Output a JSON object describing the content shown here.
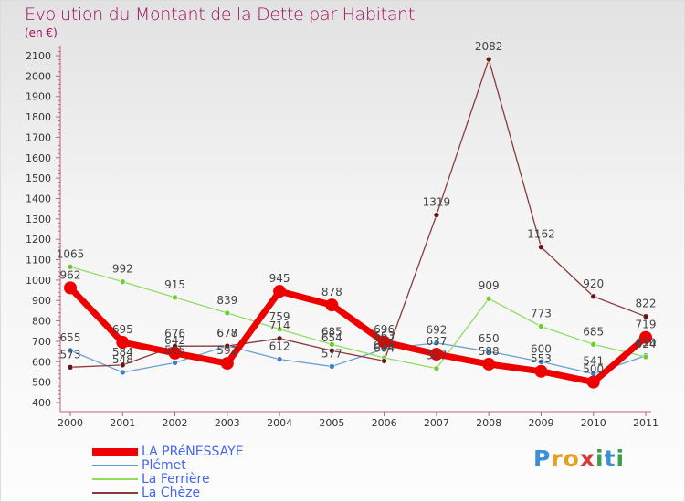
{
  "title": "Evolution du Montant de la Dette par Habitant",
  "unit": "(en €)",
  "logo": {
    "letters": [
      {
        "ch": "P",
        "color": "#3a8fd6"
      },
      {
        "ch": "r",
        "color": "#e8a020"
      },
      {
        "ch": "o",
        "color": "#e8a020"
      },
      {
        "ch": "x",
        "color": "#d63a3a"
      },
      {
        "ch": "i",
        "color": "#3aa050"
      },
      {
        "ch": "t",
        "color": "#3a8fd6"
      },
      {
        "ch": "i",
        "color": "#3aa050"
      }
    ]
  },
  "chart_data": {
    "type": "line",
    "categories": [
      "2000",
      "2001",
      "2002",
      "2003",
      "2004",
      "2005",
      "2006",
      "2007",
      "2008",
      "2009",
      "2010",
      "2011"
    ],
    "ylim": [
      400,
      2150
    ],
    "yticks": [
      400,
      500,
      600,
      700,
      800,
      900,
      1000,
      1100,
      1200,
      1300,
      1400,
      1500,
      1600,
      1700,
      1800,
      1900,
      2000,
      2100
    ],
    "grid": false,
    "legend_position": "bottom-left",
    "series": [
      {
        "name": "Plémet",
        "color": "#6aa0d0",
        "marker": "#3a80c8",
        "width": 1.3,
        "values": [
          655,
          548,
          595,
          678,
          612,
          577,
          663,
          692,
          650,
          600,
          541,
          630
        ],
        "labels": [
          "655",
          "548",
          "595",
          "678",
          "612",
          "577",
          "663",
          "692",
          "650",
          "600",
          "541",
          "630"
        ]
      },
      {
        "name": "La Ferrière",
        "color": "#90dd60",
        "marker": "#70cc30",
        "width": 1.3,
        "values": [
          1065,
          992,
          915,
          839,
          759,
          685,
          619,
          567,
          909,
          773,
          685,
          624
        ],
        "labels": [
          "1065",
          "992",
          "915",
          "839",
          "759",
          "685",
          "619",
          "567",
          "909",
          "773",
          "685",
          "624"
        ]
      },
      {
        "name": "La Chèze",
        "color": "#8b3a3a",
        "marker": "#6a1515",
        "width": 1.3,
        "values": [
          573,
          584,
          676,
          677,
          714,
          654,
          604,
          1319,
          2082,
          1162,
          920,
          822
        ],
        "labels": [
          "573",
          "584",
          "676",
          "677",
          "714",
          "654",
          "604",
          "1319",
          "2082",
          "1162",
          "920",
          "822"
        ]
      },
      {
        "name": "LA PRéNESSAYE",
        "color": "#ee0000",
        "marker": "#ee0000",
        "width": 7,
        "values": [
          962,
          695,
          642,
          592,
          945,
          878,
          696,
          637,
          588,
          553,
          500,
          719
        ],
        "labels": [
          "962",
          "695",
          "642",
          "592",
          "945",
          "878",
          "696",
          "637",
          "588",
          "553",
          "500",
          "719"
        ]
      }
    ],
    "legend_order": [
      "LA PRéNESSAYE",
      "Plémet",
      "La Ferrière",
      "La Chèze"
    ]
  }
}
